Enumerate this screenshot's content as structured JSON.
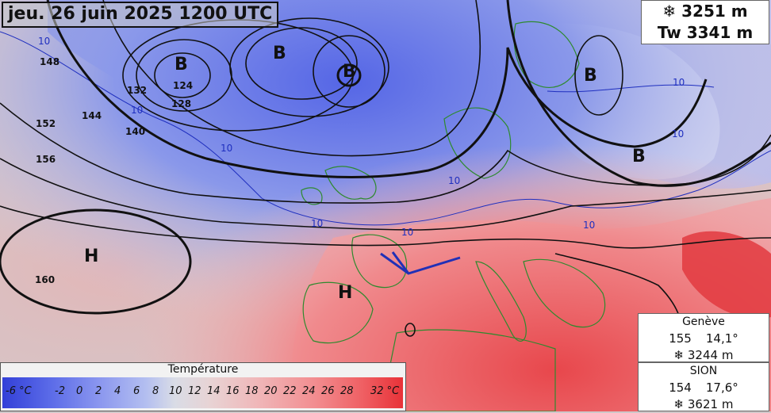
{
  "title": "jeu. 26 juin 2025 1200 UTC",
  "altitude_box": {
    "freezing": "❄ 3251 m",
    "wetbulb": "Tw 3341 m"
  },
  "stations": [
    {
      "name": "Genève",
      "value1": "155",
      "value2": "14,1°",
      "freezing": "❄ 3244 m"
    },
    {
      "name": "SION",
      "value1": "154",
      "value2": "17,6°",
      "freezing": "❄ 3621 m"
    }
  ],
  "pressure_centers": [
    {
      "letter": "B",
      "kind": "low"
    },
    {
      "letter": "B",
      "kind": "low"
    },
    {
      "letter": "B",
      "kind": "low"
    },
    {
      "letter": "B",
      "kind": "low"
    },
    {
      "letter": "B",
      "kind": "low"
    },
    {
      "letter": "H",
      "kind": "high"
    },
    {
      "letter": "H",
      "kind": "high"
    }
  ],
  "isohypse_labels": [
    "124",
    "128",
    "132",
    "140",
    "144",
    "148",
    "152",
    "156",
    "160"
  ],
  "isotherm_labels": [
    "10",
    "10",
    "10",
    "10",
    "10",
    "10",
    "10",
    "10",
    "10"
  ],
  "legend": {
    "title": "Température",
    "ticks": [
      "-6 °C",
      "-2",
      "0",
      "2",
      "4",
      "6",
      "8",
      "10",
      "12",
      "14",
      "16",
      "18",
      "20",
      "22",
      "24",
      "26",
      "28",
      "32 °C"
    ]
  },
  "colors": {
    "cold": "#3f4fe0",
    "warm": "#e8474c",
    "isotherm": "#1f2fbf",
    "contour": "#111111"
  }
}
